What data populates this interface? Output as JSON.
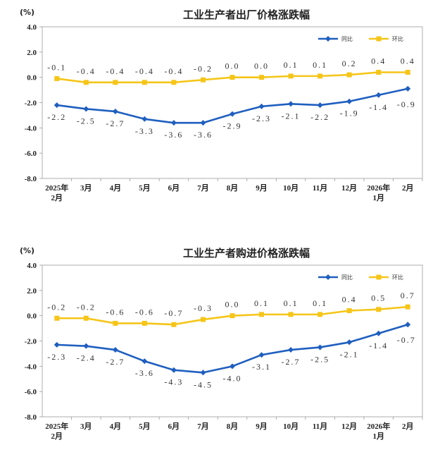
{
  "chart_data": [
    {
      "type": "line",
      "title": "工业生产者出厂价格涨跌幅",
      "unit": "(%)",
      "categories": [
        "2025年\n2月",
        "3月",
        "4月",
        "5月",
        "6月",
        "7月",
        "8月",
        "9月",
        "10月",
        "11月",
        "12月",
        "2026年\n1月",
        "2月"
      ],
      "ylim": [
        -8.0,
        4.0
      ],
      "yticks": [
        "4.0",
        "2.0",
        "0.0",
        "-2.0",
        "-4.0",
        "-6.0",
        "-8.0"
      ],
      "series": [
        {
          "name": "同比",
          "color": "#1f5fbf",
          "values": [
            -2.2,
            -2.5,
            -2.7,
            -3.3,
            -3.6,
            -3.6,
            -2.9,
            -2.3,
            -2.1,
            -2.2,
            -1.9,
            -1.4,
            -0.9
          ],
          "labels": [
            "-2.2",
            "-2.5",
            "-2.7",
            "-3.3",
            "-3.6",
            "-3.6",
            "-2.9",
            "-2.3",
            "-2.1",
            "-2.2",
            "-1.9",
            "-1.4",
            "-0.9"
          ]
        },
        {
          "name": "环比",
          "color": "#f5c518",
          "values": [
            -0.1,
            -0.4,
            -0.4,
            -0.4,
            -0.4,
            -0.2,
            0.0,
            0.0,
            0.1,
            0.1,
            0.2,
            0.4,
            0.4
          ],
          "labels": [
            "-0.1",
            "-0.4",
            "-0.4",
            "-0.4",
            "-0.4",
            "-0.2",
            "0.0",
            "0.0",
            "0.1",
            "0.1",
            "0.2",
            "0.4",
            "0.4"
          ]
        }
      ]
    },
    {
      "type": "line",
      "title": "工业生产者购进价格涨跌幅",
      "unit": "(%)",
      "categories": [
        "2025年\n2月",
        "3月",
        "4月",
        "5月",
        "6月",
        "7月",
        "8月",
        "9月",
        "10月",
        "11月",
        "12月",
        "2026年\n1月",
        "2月"
      ],
      "ylim": [
        -8.0,
        4.0
      ],
      "yticks": [
        "4.0",
        "2.0",
        "0.0",
        "-2.0",
        "-4.0",
        "-6.0",
        "-8.0"
      ],
      "series": [
        {
          "name": "同比",
          "color": "#1f5fbf",
          "values": [
            -2.3,
            -2.4,
            -2.7,
            -3.6,
            -4.3,
            -4.5,
            -4.0,
            -3.1,
            -2.7,
            -2.5,
            -2.1,
            -1.4,
            -0.7
          ],
          "labels": [
            "-2.3",
            "-2.4",
            "-2.7",
            "-3.6",
            "-4.3",
            "-4.5",
            "-4.0",
            "-3.1",
            "-2.7",
            "-2.5",
            "-2.1",
            "-1.4",
            "-0.7"
          ]
        },
        {
          "name": "环比",
          "color": "#f5c518",
          "values": [
            -0.2,
            -0.2,
            -0.6,
            -0.6,
            -0.7,
            -0.3,
            0.0,
            0.1,
            0.1,
            0.1,
            0.4,
            0.5,
            0.7
          ],
          "labels": [
            "-0.2",
            "-0.2",
            "-0.6",
            "-0.6",
            "-0.7",
            "-0.3",
            "0.0",
            "0.1",
            "0.1",
            "0.1",
            "0.4",
            "0.5",
            "0.7"
          ]
        }
      ]
    }
  ]
}
